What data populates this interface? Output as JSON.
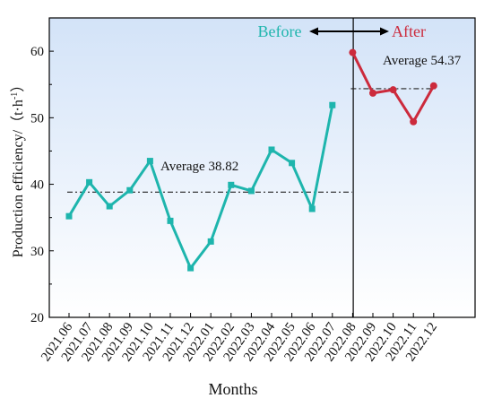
{
  "chart_data": {
    "type": "line",
    "xlabel": "Months",
    "ylabel": "Production efficiency/（t·h",
    "ylabel_sup": "-1",
    "ylabel_suffix": "）",
    "ylim": [
      20,
      65
    ],
    "yticks": [
      20,
      30,
      40,
      50,
      60
    ],
    "grid": false,
    "categories": [
      "2021.06",
      "2021.07",
      "2021.08",
      "2021.09",
      "2021.10",
      "2021.11",
      "2021.12",
      "2022.01",
      "2022.02",
      "2022.03",
      "2022.04",
      "2022.05",
      "2022.06",
      "2022.07",
      "2022.08",
      "2022.09",
      "2022.10",
      "2022.11",
      "2022.12"
    ],
    "series": [
      {
        "name": "Before",
        "color": "#1eb5ad",
        "marker": "square",
        "x": [
          "2021.06",
          "2021.07",
          "2021.08",
          "2021.09",
          "2021.10",
          "2021.11",
          "2021.12",
          "2022.01",
          "2022.02",
          "2022.03",
          "2022.04",
          "2022.05",
          "2022.06",
          "2022.07"
        ],
        "values": [
          35.2,
          40.3,
          36.7,
          39.1,
          43.5,
          34.5,
          27.4,
          31.4,
          39.9,
          39.0,
          45.2,
          43.2,
          36.3,
          51.9
        ],
        "average": 38.82,
        "average_label": "Average 38.82"
      },
      {
        "name": "After",
        "color": "#cc2a3c",
        "marker": "circle",
        "x": [
          "2022.08",
          "2022.09",
          "2022.10",
          "2022.11",
          "2022.12"
        ],
        "values": [
          59.8,
          53.7,
          54.2,
          49.4,
          54.8
        ],
        "average": 54.37,
        "average_label": "Average 54.37"
      }
    ],
    "divider_after": "2022.07",
    "colors": {
      "bg_top": "#eef4fc",
      "bg_bottom": "#d3e3f8",
      "before": "#1eb5ad",
      "after": "#cc2a3c",
      "axis": "#000000"
    }
  }
}
